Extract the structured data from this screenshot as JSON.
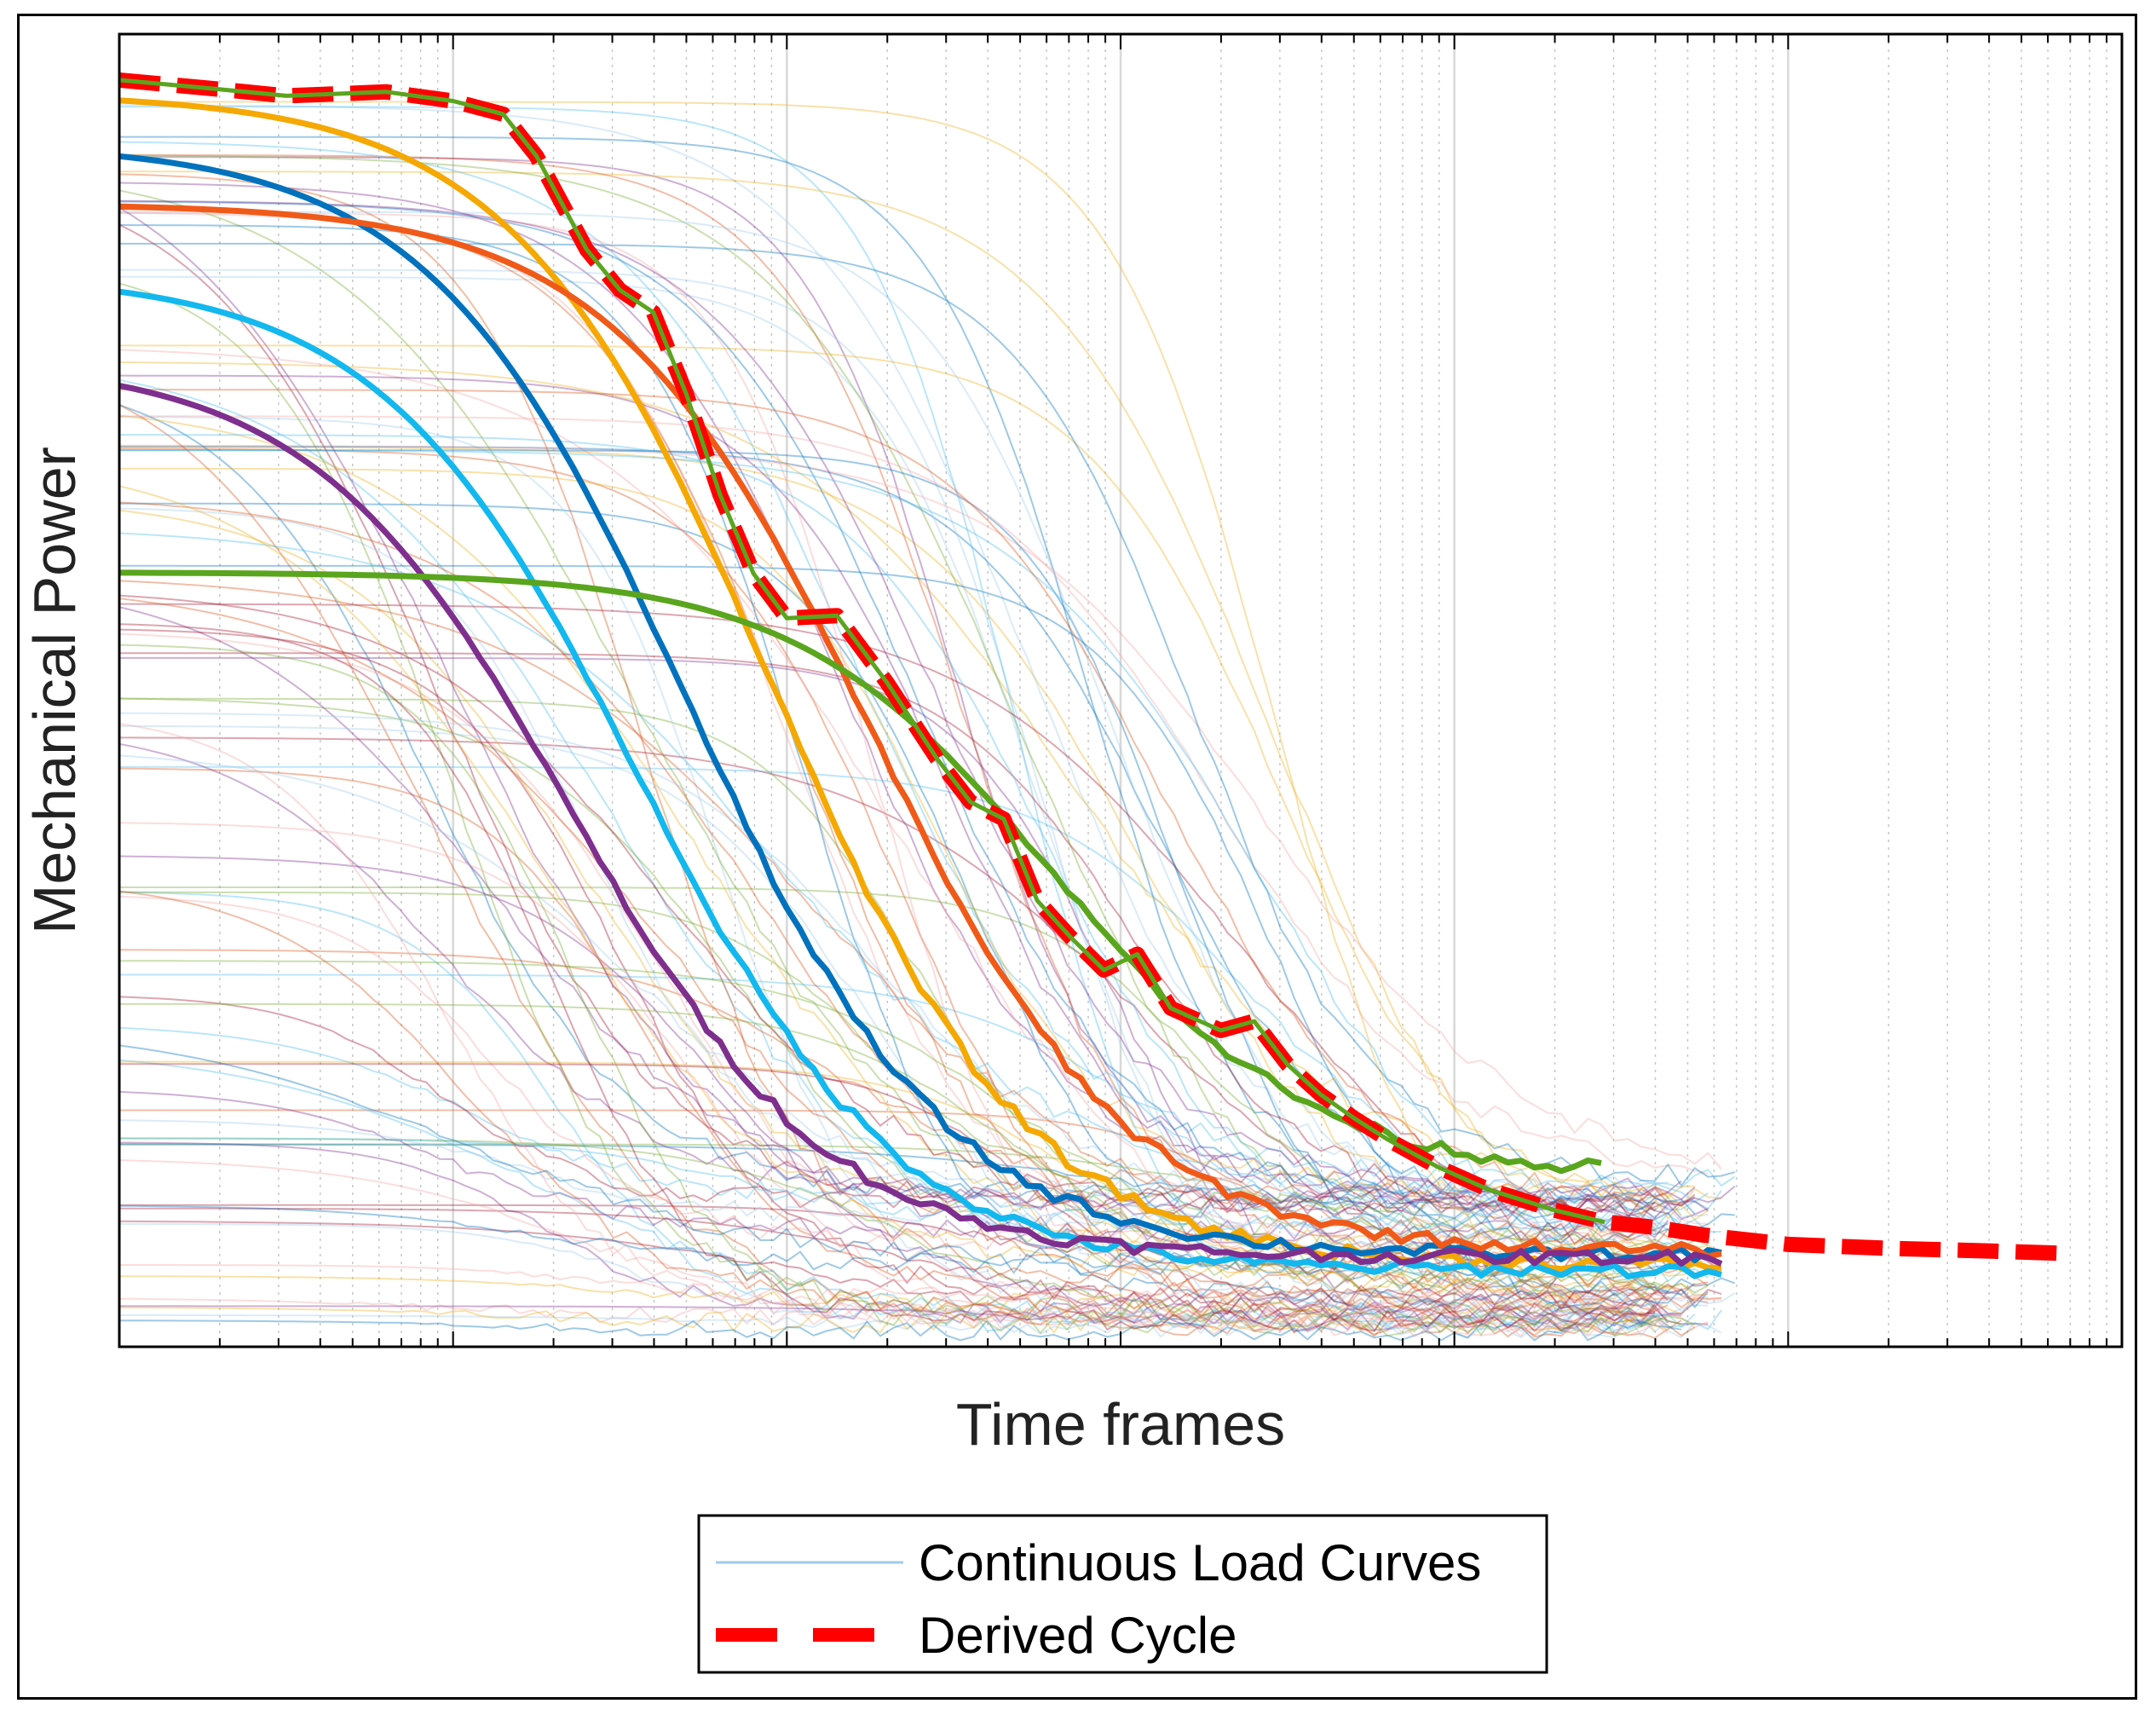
{
  "chart_data": {
    "type": "line",
    "x_scale": "log",
    "x_decades": 6,
    "xlabel": "Time frames",
    "ylabel": "Mechanical Power",
    "ylim": [
      0,
      100
    ],
    "grid": true,
    "legend_position": "bottom-center",
    "legend": [
      {
        "label": "Continuous Load Curves",
        "style": "thin-line",
        "color": "#9fcbec"
      },
      {
        "label": "Derived Cycle",
        "style": "dashed-thick",
        "color": "#ff0000"
      }
    ],
    "background_curves": {
      "count": 110,
      "description_note": "thin semi-transparent sigmoid load curves",
      "palette": [
        "#0072bd",
        "#d95319",
        "#edb120",
        "#7e2f8e",
        "#77ac30",
        "#4dbeee",
        "#a2142f",
        "#f4a6a6",
        "#9fcbec"
      ]
    },
    "highlight_series": [
      {
        "name": "yellow",
        "color": "#f5a800",
        "start": 95.5,
        "x_drop": 1.95,
        "end": 6.2,
        "x_end": 4.82
      },
      {
        "name": "dark-blue",
        "color": "#0072bd",
        "start": 91.7,
        "x_drop": 1.7,
        "end": 7.0,
        "x_end": 4.82
      },
      {
        "name": "orange",
        "color": "#f05a19",
        "start": 87.1,
        "x_drop": 2.25,
        "end": 7.2,
        "x_end": 4.82
      },
      {
        "name": "light-blue",
        "color": "#12b8ee",
        "start": 81.7,
        "x_drop": 1.55,
        "end": 5.8,
        "x_end": 4.82
      },
      {
        "name": "purple",
        "color": "#7e2f8e",
        "start": 75.2,
        "x_drop": 1.35,
        "end": 6.8,
        "x_end": 4.82
      },
      {
        "name": "green",
        "color": "#5aa51e",
        "start": 59.0,
        "x_drop": 2.8,
        "end": 13.0,
        "x_end": 4.45
      }
    ],
    "derived_cycle": {
      "name": "Derived Cycle",
      "color": "#ff0000",
      "x": [
        0.0,
        0.3,
        0.5,
        0.8,
        1.0,
        1.15,
        1.25,
        1.4,
        1.5,
        1.6,
        1.7,
        1.8,
        1.9,
        2.0,
        2.15,
        2.3,
        2.45,
        2.55,
        2.65,
        2.75,
        2.85,
        2.95,
        3.05,
        3.15,
        3.3,
        3.4,
        3.5,
        3.6,
        3.7,
        3.8,
        3.95,
        4.1,
        4.3,
        4.45,
        4.6,
        4.75,
        5.0,
        5.3,
        5.6,
        5.85
      ],
      "y": [
        96.5,
        95.8,
        95.3,
        95.6,
        94.9,
        93.9,
        90.7,
        83.6,
        80.5,
        78.8,
        72.5,
        64.9,
        58.9,
        55.5,
        55.7,
        50.6,
        44.8,
        41.5,
        40.2,
        34.0,
        31.2,
        28.7,
        29.9,
        25.8,
        24.1,
        24.8,
        21.5,
        19.2,
        17.4,
        15.8,
        13.7,
        12.0,
        10.4,
        9.5,
        9.1,
        8.5,
        7.8,
        7.5,
        7.3,
        7.1
      ]
    },
    "axes": {
      "y_ticks_labeled": false,
      "x_ticks_labeled": false
    }
  }
}
